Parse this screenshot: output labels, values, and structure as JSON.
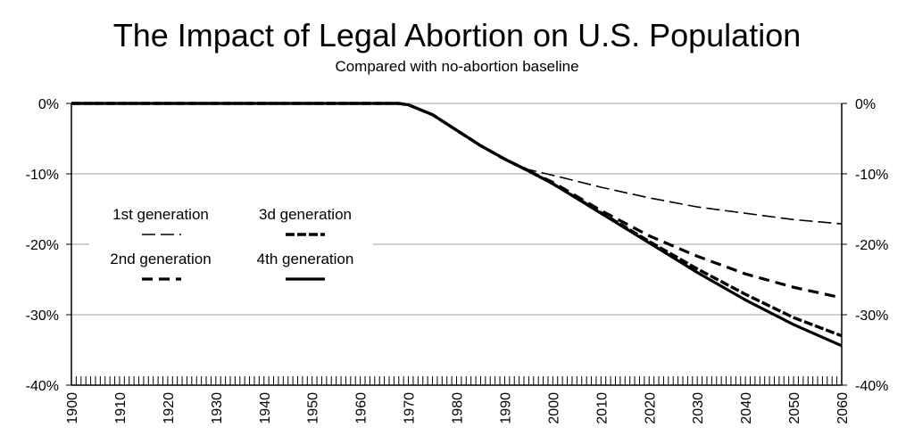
{
  "chart_data": {
    "type": "line",
    "title": "The Impact of Legal Abortion on U.S. Population",
    "subtitle": "Compared with no-abortion baseline",
    "xlabel": "",
    "ylabel": "",
    "xlim": [
      1900,
      2060
    ],
    "ylim": [
      -40,
      0
    ],
    "x_ticks": [
      "1900",
      "1910",
      "1920",
      "1930",
      "1940",
      "1950",
      "1960",
      "1970",
      "1980",
      "1990",
      "2000",
      "2010",
      "2020",
      "2030",
      "2040",
      "2050",
      "2060"
    ],
    "y_ticks": [
      "0%",
      "-10%",
      "-20%",
      "-30%",
      "-40%"
    ],
    "grid": true,
    "legend_placement": "left",
    "series": [
      {
        "name": "1st generation",
        "x": [
          1900,
          1968,
          1970,
          1975,
          1980,
          1985,
          1990,
          1995,
          2000,
          2010,
          2020,
          2030,
          2040,
          2050,
          2060
        ],
        "y": [
          0,
          0,
          -0.2,
          -1.6,
          -3.8,
          -6.0,
          -7.9,
          -9.4,
          -10.2,
          -11.9,
          -13.4,
          -14.7,
          -15.6,
          -16.5,
          -17.1
        ]
      },
      {
        "name": "2nd generation",
        "x": [
          1900,
          1968,
          1970,
          1975,
          1980,
          1985,
          1990,
          1995,
          2000,
          2010,
          2020,
          2030,
          2040,
          2050,
          2060
        ],
        "y": [
          0,
          0,
          -0.2,
          -1.6,
          -3.8,
          -6.0,
          -7.9,
          -9.6,
          -11.2,
          -15.2,
          -18.8,
          -21.7,
          -24.2,
          -26.1,
          -27.6
        ]
      },
      {
        "name": "3d generation",
        "x": [
          1900,
          1968,
          1970,
          1975,
          1980,
          1985,
          1990,
          1995,
          2000,
          2010,
          2020,
          2030,
          2040,
          2050,
          2060
        ],
        "y": [
          0,
          0,
          -0.2,
          -1.6,
          -3.8,
          -6.0,
          -7.9,
          -9.6,
          -11.4,
          -15.5,
          -19.6,
          -23.5,
          -27.1,
          -30.4,
          -33.0
        ]
      },
      {
        "name": "4th generation",
        "x": [
          1900,
          1968,
          1970,
          1975,
          1980,
          1985,
          1990,
          1995,
          2000,
          2010,
          2020,
          2030,
          2040,
          2050,
          2060
        ],
        "y": [
          0,
          0,
          -0.2,
          -1.6,
          -3.8,
          -6.0,
          -7.9,
          -9.6,
          -11.4,
          -15.6,
          -19.8,
          -24.0,
          -27.9,
          -31.4,
          -34.4
        ]
      }
    ]
  }
}
